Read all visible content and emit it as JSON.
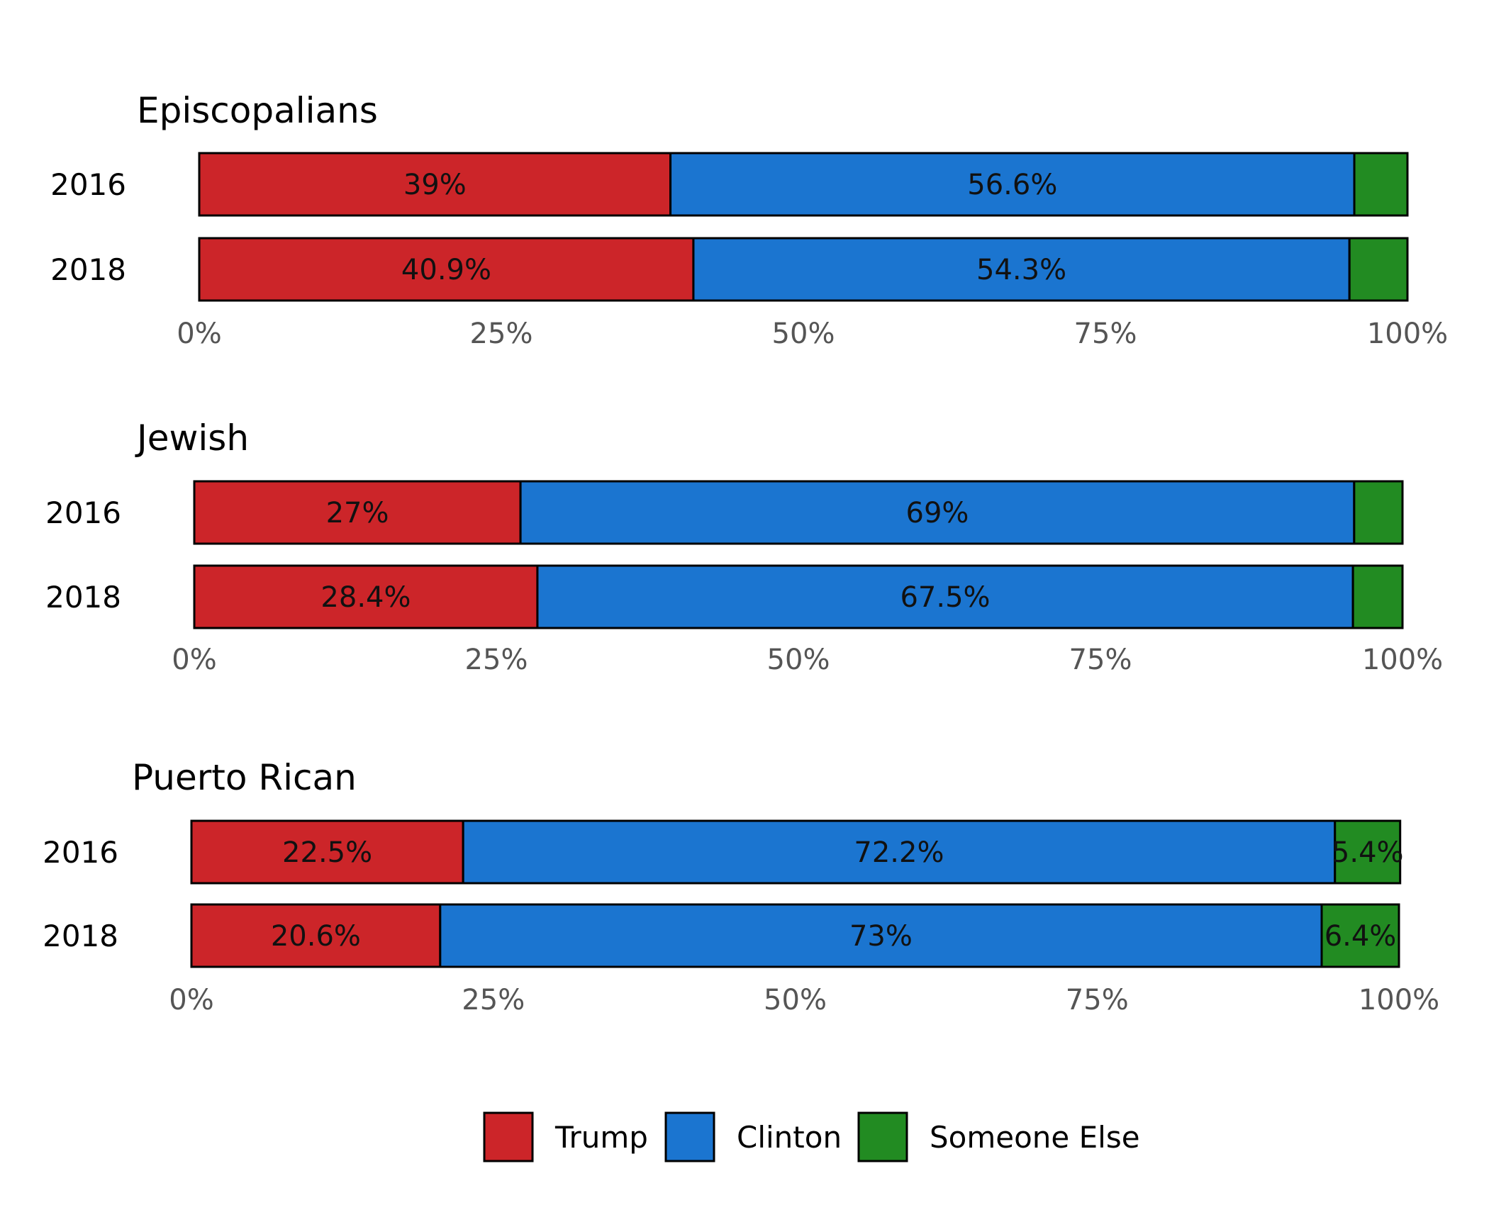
{
  "chart_data": {
    "type": "bar",
    "orientation": "horizontal",
    "stacked": true,
    "xlim": [
      0,
      100
    ],
    "x_ticks": [
      "0%",
      "25%",
      "50%",
      "75%",
      "100%"
    ],
    "grid": false,
    "legend_position": "bottom",
    "colors": {
      "Trump": "#cc2529",
      "Clinton": "#1b75d0",
      "Someone Else": "#228b22"
    },
    "legend": [
      "Trump",
      "Clinton",
      "Someone Else"
    ],
    "panels": [
      {
        "title": "Episcopalians",
        "rows": [
          {
            "year": "2016",
            "values": [
              39,
              56.6,
              4.4
            ],
            "labels": [
              "39%",
              "56.6%",
              ""
            ]
          },
          {
            "year": "2018",
            "values": [
              40.9,
              54.3,
              4.8
            ],
            "labels": [
              "40.9%",
              "54.3%",
              ""
            ]
          }
        ]
      },
      {
        "title": "Jewish",
        "rows": [
          {
            "year": "2016",
            "values": [
              27,
              69,
              4
            ],
            "labels": [
              "27%",
              "69%",
              ""
            ]
          },
          {
            "year": "2018",
            "values": [
              28.4,
              67.5,
              4.1
            ],
            "labels": [
              "28.4%",
              "67.5%",
              ""
            ]
          }
        ]
      },
      {
        "title": "Puerto Rican",
        "rows": [
          {
            "year": "2016",
            "values": [
              22.5,
              72.2,
              5.4
            ],
            "labels": [
              "22.5%",
              "72.2%",
              "5.4%"
            ]
          },
          {
            "year": "2018",
            "values": [
              20.6,
              73,
              6.4
            ],
            "labels": [
              "20.6%",
              "73%",
              "6.4%"
            ]
          }
        ]
      }
    ]
  }
}
